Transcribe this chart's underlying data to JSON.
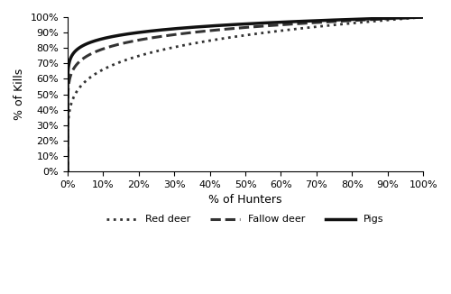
{
  "xlabel": "% of Hunters",
  "ylabel": "% of Kills",
  "xlim": [
    0,
    1
  ],
  "ylim": [
    0,
    1
  ],
  "xticks": [
    0,
    0.1,
    0.2,
    0.3,
    0.4,
    0.5,
    0.6,
    0.7,
    0.8,
    0.9,
    1.0
  ],
  "yticks": [
    0,
    0.1,
    0.2,
    0.3,
    0.4,
    0.5,
    0.6,
    0.7,
    0.8,
    0.9,
    1.0
  ],
  "curves": {
    "Red deer": {
      "exponent": 0.18,
      "linestyle": "dotted",
      "linewidth": 2.0,
      "color": "#333333",
      "dot_size": 3.5
    },
    "Fallow deer": {
      "exponent": 0.1,
      "linestyle": "dashed",
      "linewidth": 2.2,
      "color": "#333333"
    },
    "Pigs": {
      "exponent": 0.065,
      "linestyle": "solid",
      "linewidth": 2.5,
      "color": "#111111"
    }
  },
  "legend_order": [
    "Red deer",
    "Fallow deer",
    "Pigs"
  ],
  "legend_styles": {
    "Red deer": {
      "linestyle": "dotted",
      "linewidth": 2.0,
      "color": "#333333"
    },
    "Fallow deer": {
      "linestyle": "dashed",
      "linewidth": 2.2,
      "color": "#333333"
    },
    "Pigs": {
      "linestyle": "solid",
      "linewidth": 2.5,
      "color": "#111111"
    }
  },
  "background_color": "#ffffff"
}
